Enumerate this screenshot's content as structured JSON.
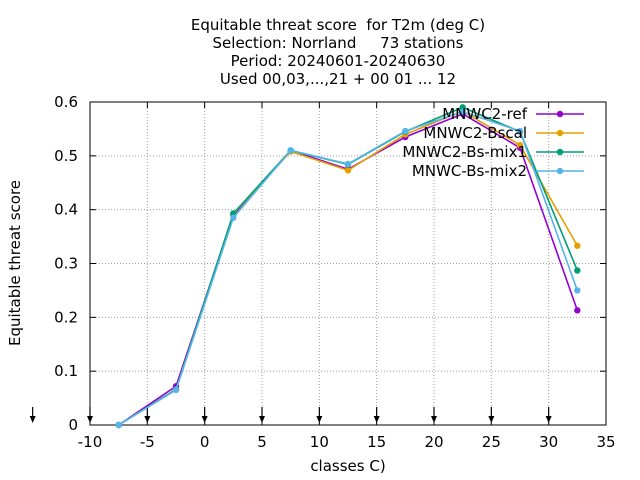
{
  "chart_data": {
    "type": "line",
    "title_lines": [
      "Equitable threat score  for T2m (deg C)",
      "Selection: Norrland     73 stations",
      "Period: 20240601-20240630",
      "Used 00,03,...,21 + 00 01 ... 12"
    ],
    "xlabel": "classes C)",
    "ylabel": "Equitable threat score",
    "xlim": [
      -10,
      35
    ],
    "ylim": [
      0,
      0.6
    ],
    "xticks": [
      "-10",
      "-5",
      "0",
      "5",
      "10",
      "15",
      "20",
      "25",
      "30",
      "35"
    ],
    "yticks": [
      "0",
      "0.1",
      "0.2",
      "0.3",
      "0.4",
      "0.5",
      "0.6"
    ],
    "grid": true,
    "legend_position": "top-right",
    "arrow_markers_x": [
      -15,
      -10,
      -5,
      0,
      5,
      10,
      15,
      20,
      25,
      30
    ],
    "series": [
      {
        "name": "MNWC2-ref",
        "color": "#9400d3",
        "x": [
          -7.5,
          -2.5,
          2.5,
          7.5,
          12.5,
          17.5,
          22.5,
          27.5,
          32.5
        ],
        "values": [
          0.0,
          0.072,
          0.39,
          0.51,
          0.475,
          0.535,
          0.578,
          0.515,
          0.213
        ]
      },
      {
        "name": "MNWC2-Bscal",
        "color": "#e69f00",
        "x": [
          -7.5,
          -2.5,
          2.5,
          7.5,
          12.5,
          17.5,
          22.5,
          27.5,
          32.5
        ],
        "values": [
          0.0,
          0.066,
          0.392,
          0.508,
          0.473,
          0.54,
          0.583,
          0.52,
          0.333
        ]
      },
      {
        "name": "MNWC2-Bs-mix1",
        "color": "#009e73",
        "x": [
          -7.5,
          -2.5,
          2.5,
          7.5,
          12.5,
          17.5,
          22.5,
          27.5,
          32.5
        ],
        "values": [
          0.0,
          0.066,
          0.393,
          0.51,
          0.484,
          0.545,
          0.59,
          0.545,
          0.287
        ]
      },
      {
        "name": "MNWC-Bs-mix2",
        "color": "#56b4e9",
        "x": [
          -7.5,
          -2.5,
          2.5,
          7.5,
          12.5,
          17.5,
          22.5,
          27.5,
          32.5
        ],
        "values": [
          0.0,
          0.065,
          0.385,
          0.51,
          0.485,
          0.546,
          0.582,
          0.546,
          0.25
        ]
      }
    ]
  }
}
